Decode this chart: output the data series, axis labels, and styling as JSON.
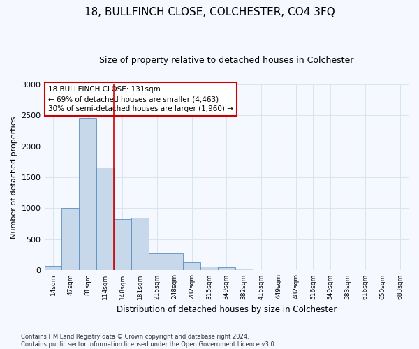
{
  "title": "18, BULLFINCH CLOSE, COLCHESTER, CO4 3FQ",
  "subtitle": "Size of property relative to detached houses in Colchester",
  "xlabel": "Distribution of detached houses by size in Colchester",
  "ylabel": "Number of detached properties",
  "footer_line1": "Contains HM Land Registry data © Crown copyright and database right 2024.",
  "footer_line2": "Contains public sector information licensed under the Open Government Licence v3.0.",
  "bar_values": [
    75,
    1000,
    2450,
    1660,
    820,
    850,
    270,
    270,
    130,
    65,
    55,
    30,
    5,
    0,
    0,
    0,
    5,
    0,
    0,
    0,
    0
  ],
  "bar_labels": [
    "14sqm",
    "47sqm",
    "81sqm",
    "114sqm",
    "148sqm",
    "181sqm",
    "215sqm",
    "248sqm",
    "282sqm",
    "315sqm",
    "349sqm",
    "382sqm",
    "415sqm",
    "449sqm",
    "482sqm",
    "516sqm",
    "549sqm",
    "583sqm",
    "616sqm",
    "650sqm",
    "683sqm"
  ],
  "bar_color": "#c8d8eb",
  "bar_edge_color": "#5a8fc0",
  "grid_color": "#d8e4f0",
  "annotation_text": "18 BULLFINCH CLOSE: 131sqm\n← 69% of detached houses are smaller (4,463)\n30% of semi-detached houses are larger (1,960) →",
  "annotation_box_color": "#ffffff",
  "annotation_box_edge": "#cc0000",
  "vline_color": "#cc0000",
  "vline_pos": 3.5,
  "ylim": [
    0,
    3000
  ],
  "yticks": [
    0,
    500,
    1000,
    1500,
    2000,
    2500,
    3000
  ],
  "background_color": "#f5f8ff",
  "title_fontsize": 11,
  "subtitle_fontsize": 9
}
